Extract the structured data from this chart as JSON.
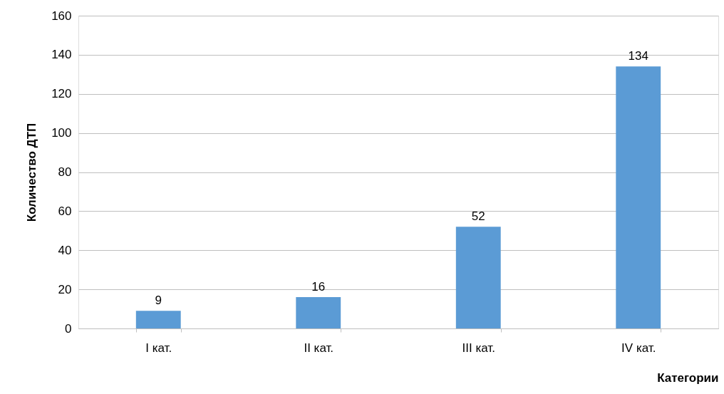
{
  "chart_data": {
    "type": "bar",
    "xlabel": "Категории",
    "ylabel": "Количество ДТП",
    "categories": [
      "I кат.",
      "II кат.",
      "III кат.",
      "IV кат."
    ],
    "values": [
      9,
      16,
      52,
      134
    ],
    "color": "#5b9bd5",
    "ylim": [
      0,
      160
    ],
    "yticks": [
      0,
      20,
      40,
      60,
      80,
      100,
      120,
      140,
      160
    ],
    "grid": "y",
    "data_labels": true
  }
}
